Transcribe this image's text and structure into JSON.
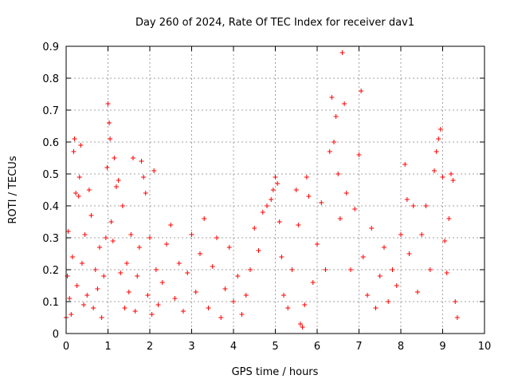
{
  "chart_data": {
    "type": "scatter",
    "title": "Day 260 of 2024, Rate Of TEC Index for receiver dav1",
    "xlabel": "GPS time / hours",
    "ylabel": "ROTI / TECUs",
    "xlim": [
      0,
      10
    ],
    "ylim": [
      0,
      0.9
    ],
    "x_ticks": [
      "0",
      "1",
      "2",
      "3",
      "4",
      "5",
      "6",
      "7",
      "8",
      "9",
      "10"
    ],
    "y_ticks": [
      "0",
      "0.1",
      "0.2",
      "0.3",
      "0.4",
      "0.5",
      "0.6",
      "0.7",
      "0.8",
      "0.9"
    ],
    "grid": true,
    "marker": "+",
    "series": [
      {
        "name": "ROTI",
        "color": "#ff0000",
        "points": [
          [
            0.0,
            0.05
          ],
          [
            0.03,
            0.18
          ],
          [
            0.05,
            0.32
          ],
          [
            0.08,
            0.11
          ],
          [
            0.12,
            0.06
          ],
          [
            0.15,
            0.24
          ],
          [
            0.18,
            0.57
          ],
          [
            0.2,
            0.61
          ],
          [
            0.23,
            0.44
          ],
          [
            0.26,
            0.15
          ],
          [
            0.3,
            0.43
          ],
          [
            0.32,
            0.49
          ],
          [
            0.35,
            0.59
          ],
          [
            0.38,
            0.22
          ],
          [
            0.42,
            0.09
          ],
          [
            0.45,
            0.31
          ],
          [
            0.5,
            0.12
          ],
          [
            0.55,
            0.45
          ],
          [
            0.6,
            0.37
          ],
          [
            0.65,
            0.08
          ],
          [
            0.7,
            0.2
          ],
          [
            0.75,
            0.14
          ],
          [
            0.8,
            0.27
          ],
          [
            0.85,
            0.05
          ],
          [
            0.9,
            0.18
          ],
          [
            0.95,
            0.3
          ],
          [
            0.98,
            0.52
          ],
          [
            1.0,
            0.72
          ],
          [
            1.03,
            0.66
          ],
          [
            1.05,
            0.61
          ],
          [
            1.08,
            0.35
          ],
          [
            1.12,
            0.29
          ],
          [
            1.15,
            0.55
          ],
          [
            1.2,
            0.46
          ],
          [
            1.25,
            0.48
          ],
          [
            1.3,
            0.19
          ],
          [
            1.35,
            0.4
          ],
          [
            1.4,
            0.08
          ],
          [
            1.45,
            0.22
          ],
          [
            1.5,
            0.13
          ],
          [
            1.55,
            0.31
          ],
          [
            1.6,
            0.55
          ],
          [
            1.65,
            0.07
          ],
          [
            1.7,
            0.18
          ],
          [
            1.75,
            0.27
          ],
          [
            1.8,
            0.54
          ],
          [
            1.85,
            0.49
          ],
          [
            1.9,
            0.44
          ],
          [
            1.95,
            0.12
          ],
          [
            2.0,
            0.3
          ],
          [
            2.05,
            0.06
          ],
          [
            2.1,
            0.51
          ],
          [
            2.15,
            0.2
          ],
          [
            2.2,
            0.09
          ],
          [
            2.3,
            0.16
          ],
          [
            2.4,
            0.28
          ],
          [
            2.5,
            0.34
          ],
          [
            2.6,
            0.11
          ],
          [
            2.7,
            0.22
          ],
          [
            2.8,
            0.07
          ],
          [
            2.9,
            0.19
          ],
          [
            3.0,
            0.31
          ],
          [
            3.1,
            0.13
          ],
          [
            3.2,
            0.25
          ],
          [
            3.3,
            0.36
          ],
          [
            3.4,
            0.08
          ],
          [
            3.5,
            0.21
          ],
          [
            3.6,
            0.3
          ],
          [
            3.7,
            0.05
          ],
          [
            3.8,
            0.14
          ],
          [
            3.9,
            0.27
          ],
          [
            4.0,
            0.1
          ],
          [
            4.1,
            0.18
          ],
          [
            4.2,
            0.06
          ],
          [
            4.3,
            0.12
          ],
          [
            4.4,
            0.2
          ],
          [
            4.5,
            0.33
          ],
          [
            4.6,
            0.26
          ],
          [
            4.7,
            0.38
          ],
          [
            4.8,
            0.4
          ],
          [
            4.9,
            0.42
          ],
          [
            4.95,
            0.45
          ],
          [
            5.0,
            0.49
          ],
          [
            5.05,
            0.47
          ],
          [
            5.1,
            0.35
          ],
          [
            5.15,
            0.24
          ],
          [
            5.2,
            0.12
          ],
          [
            5.3,
            0.08
          ],
          [
            5.4,
            0.2
          ],
          [
            5.5,
            0.45
          ],
          [
            5.55,
            0.34
          ],
          [
            5.6,
            0.03
          ],
          [
            5.65,
            0.02
          ],
          [
            5.7,
            0.09
          ],
          [
            5.75,
            0.49
          ],
          [
            5.8,
            0.43
          ],
          [
            5.9,
            0.16
          ],
          [
            6.0,
            0.28
          ],
          [
            6.1,
            0.41
          ],
          [
            6.2,
            0.2
          ],
          [
            6.3,
            0.57
          ],
          [
            6.35,
            0.74
          ],
          [
            6.4,
            0.6
          ],
          [
            6.45,
            0.68
          ],
          [
            6.5,
            0.5
          ],
          [
            6.55,
            0.36
          ],
          [
            6.6,
            0.88
          ],
          [
            6.65,
            0.72
          ],
          [
            6.7,
            0.44
          ],
          [
            6.8,
            0.2
          ],
          [
            6.9,
            0.39
          ],
          [
            7.0,
            0.56
          ],
          [
            7.05,
            0.76
          ],
          [
            7.1,
            0.24
          ],
          [
            7.2,
            0.12
          ],
          [
            7.3,
            0.33
          ],
          [
            7.4,
            0.08
          ],
          [
            7.5,
            0.18
          ],
          [
            7.6,
            0.27
          ],
          [
            7.7,
            0.1
          ],
          [
            7.8,
            0.2
          ],
          [
            7.9,
            0.15
          ],
          [
            8.0,
            0.31
          ],
          [
            8.1,
            0.53
          ],
          [
            8.15,
            0.42
          ],
          [
            8.2,
            0.25
          ],
          [
            8.3,
            0.4
          ],
          [
            8.4,
            0.13
          ],
          [
            8.5,
            0.31
          ],
          [
            8.6,
            0.4
          ],
          [
            8.7,
            0.2
          ],
          [
            8.8,
            0.51
          ],
          [
            8.85,
            0.57
          ],
          [
            8.9,
            0.61
          ],
          [
            8.95,
            0.64
          ],
          [
            9.0,
            0.49
          ],
          [
            9.05,
            0.29
          ],
          [
            9.1,
            0.19
          ],
          [
            9.15,
            0.36
          ],
          [
            9.2,
            0.5
          ],
          [
            9.25,
            0.48
          ],
          [
            9.3,
            0.1
          ],
          [
            9.35,
            0.05
          ]
        ]
      }
    ]
  }
}
